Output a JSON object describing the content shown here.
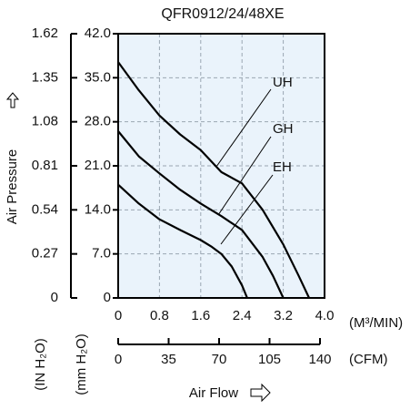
{
  "chart_data": {
    "type": "line",
    "title": "QFR0912/24/48XE",
    "xlabel": "Air Flow",
    "x_unit": "(M³/MIN)",
    "x2_unit": "(CFM)",
    "ylabel": "Air Pressure",
    "y_unit": "(mm H₂O)",
    "y2_unit": "(IN H₂O)",
    "xlim": [
      0,
      4
    ],
    "xticks": [
      0,
      0.8,
      1.6,
      2.4,
      3.2,
      {
        "value": 4,
        "label": "4.0"
      }
    ],
    "x2lim": [
      0,
      140
    ],
    "x2ticks": [
      0,
      35,
      70,
      105,
      140
    ],
    "ylim": [
      0,
      42
    ],
    "yticks": [
      0,
      {
        "value": 7,
        "label": "7.0"
      },
      {
        "value": 14,
        "label": "14.0"
      },
      {
        "value": 21,
        "label": "21.0"
      },
      {
        "value": 28,
        "label": "28.0"
      },
      {
        "value": 35,
        "label": "35.0"
      },
      {
        "value": 42,
        "label": "42.0"
      }
    ],
    "y2lim": [
      0,
      1.62
    ],
    "y2ticks": [
      0,
      0.27,
      0.54,
      0.81,
      1.08,
      1.35,
      1.62
    ],
    "grid": true,
    "series": [
      {
        "name": "UH",
        "color": "#000000",
        "x": [
          0,
          0.4,
          0.8,
          1.2,
          1.6,
          2.0,
          2.4,
          2.8,
          3.2,
          3.5,
          3.7
        ],
        "values": [
          37.5,
          33,
          29,
          26,
          23.5,
          20,
          18.2,
          14,
          8.5,
          3.5,
          0
        ]
      },
      {
        "name": "GH",
        "color": "#000000",
        "x": [
          0,
          0.4,
          0.8,
          1.2,
          1.6,
          2.0,
          2.4,
          2.8,
          3.0,
          3.2
        ],
        "values": [
          26.5,
          22.5,
          19.8,
          17.2,
          15,
          13,
          10.8,
          6.5,
          3.5,
          0
        ]
      },
      {
        "name": "EH",
        "color": "#000000",
        "x": [
          0,
          0.4,
          0.8,
          1.2,
          1.6,
          1.8,
          2.0,
          2.2,
          2.4,
          2.5
        ],
        "values": [
          18,
          15,
          12.5,
          10.8,
          9.2,
          8.2,
          7,
          5,
          2,
          0
        ]
      }
    ]
  }
}
